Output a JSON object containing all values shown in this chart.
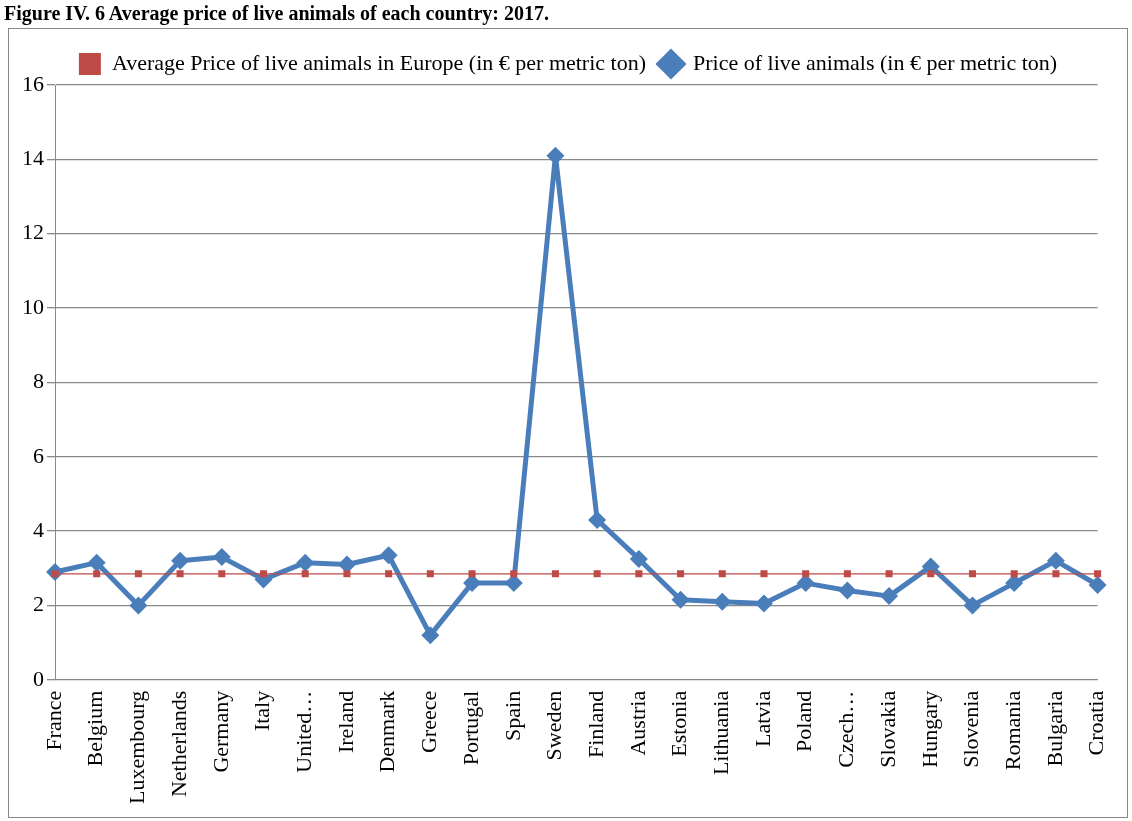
{
  "chart_data": {
    "type": "line",
    "title": "Figure IV. 6 Average price of live animals of each country: 2017.",
    "categories": [
      "France",
      "Belgium",
      "Luxembourg",
      "Netherlands",
      "Germany",
      "Italy",
      "United…",
      "Ireland",
      "Denmark",
      "Greece",
      "Portugal",
      "Spain",
      "Sweden",
      "Finland",
      "Austria",
      "Estonia",
      "Lithuania",
      "Latvia",
      "Poland",
      "Czech…",
      "Slovakia",
      "Hungary",
      "Slovenia",
      "Romania",
      "Bulgaria",
      "Croatia"
    ],
    "series": [
      {
        "name": "Price of live animals (in € per metric ton)",
        "color": "#4a7ebb",
        "marker": "diamond",
        "values": [
          2.9,
          3.15,
          2.0,
          3.2,
          3.3,
          2.7,
          3.15,
          3.1,
          3.35,
          1.2,
          2.6,
          2.6,
          14.1,
          4.3,
          3.25,
          2.15,
          2.1,
          2.05,
          2.6,
          2.4,
          2.25,
          3.05,
          2.0,
          2.6,
          3.2,
          2.55
        ]
      },
      {
        "name": "Average Price of live animals in Europe (in € per metric ton)",
        "color": "#be4b48",
        "marker": "square",
        "values": [
          2.85,
          2.85,
          2.85,
          2.85,
          2.85,
          2.85,
          2.85,
          2.85,
          2.85,
          2.85,
          2.85,
          2.85,
          2.85,
          2.85,
          2.85,
          2.85,
          2.85,
          2.85,
          2.85,
          2.85,
          2.85,
          2.85,
          2.85,
          2.85,
          2.85,
          2.85
        ]
      }
    ],
    "ylim": [
      0,
      16
    ],
    "yticks": [
      0,
      2,
      4,
      6,
      8,
      10,
      12,
      14,
      16
    ],
    "grid": "y",
    "legend": "top"
  }
}
